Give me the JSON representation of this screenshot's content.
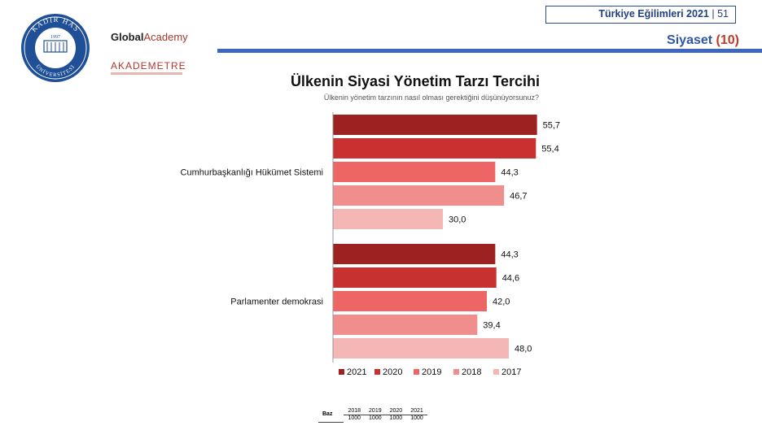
{
  "logos": {
    "seal_text_top": "KADIR HAS",
    "seal_text_bottom": "ÜNİVERSİTESİ",
    "seal_year": "1997",
    "ga_bold": "Global",
    "ga_light": "Academy",
    "akademetre": "AKADEMETRE"
  },
  "header": {
    "title": "Türkiye Eğilimleri 2021",
    "separator": "|",
    "page": "51",
    "section": "Siyaset",
    "section_num": "(10)"
  },
  "colors": {
    "accent_blue": "#3d66c0",
    "series": [
      "#9d2121",
      "#c93030",
      "#ee6565",
      "#f08e8e",
      "#f5b6b6"
    ]
  },
  "chart_data": {
    "type": "bar",
    "orientation": "horizontal",
    "title": "Ülkenin Siyasi Yönetim Tarzı Tercihi",
    "subtitle": "Ülkenin yönetim tarzının nasıl olması gerektiğini düşünüyorsunuz?",
    "categories": [
      "Cumhurbaşkanlığı Hükümet Sistemi",
      "Parlamenter demokrasi"
    ],
    "series": [
      {
        "name": "2021",
        "values": [
          55.7,
          44.3
        ],
        "labels": [
          "55,7",
          "44,3"
        ]
      },
      {
        "name": "2020",
        "values": [
          55.4,
          44.6
        ],
        "labels": [
          "55,4",
          "44,6"
        ]
      },
      {
        "name": "2019",
        "values": [
          44.3,
          42.0
        ],
        "labels": [
          "44,3",
          "42,0"
        ]
      },
      {
        "name": "2018",
        "values": [
          46.7,
          39.4
        ],
        "labels": [
          "46,7",
          "39,4"
        ]
      },
      {
        "name": "2017",
        "values": [
          30.0,
          48.0
        ],
        "labels": [
          "30,0",
          "48,0"
        ]
      }
    ],
    "xlim": [
      0,
      56
    ],
    "grid": false,
    "legend": "bottom"
  },
  "baz": {
    "label": "Baz",
    "years": [
      "2018",
      "2019",
      "2020",
      "2021"
    ],
    "values": [
      "1000",
      "1000",
      "1000",
      "1000"
    ]
  }
}
